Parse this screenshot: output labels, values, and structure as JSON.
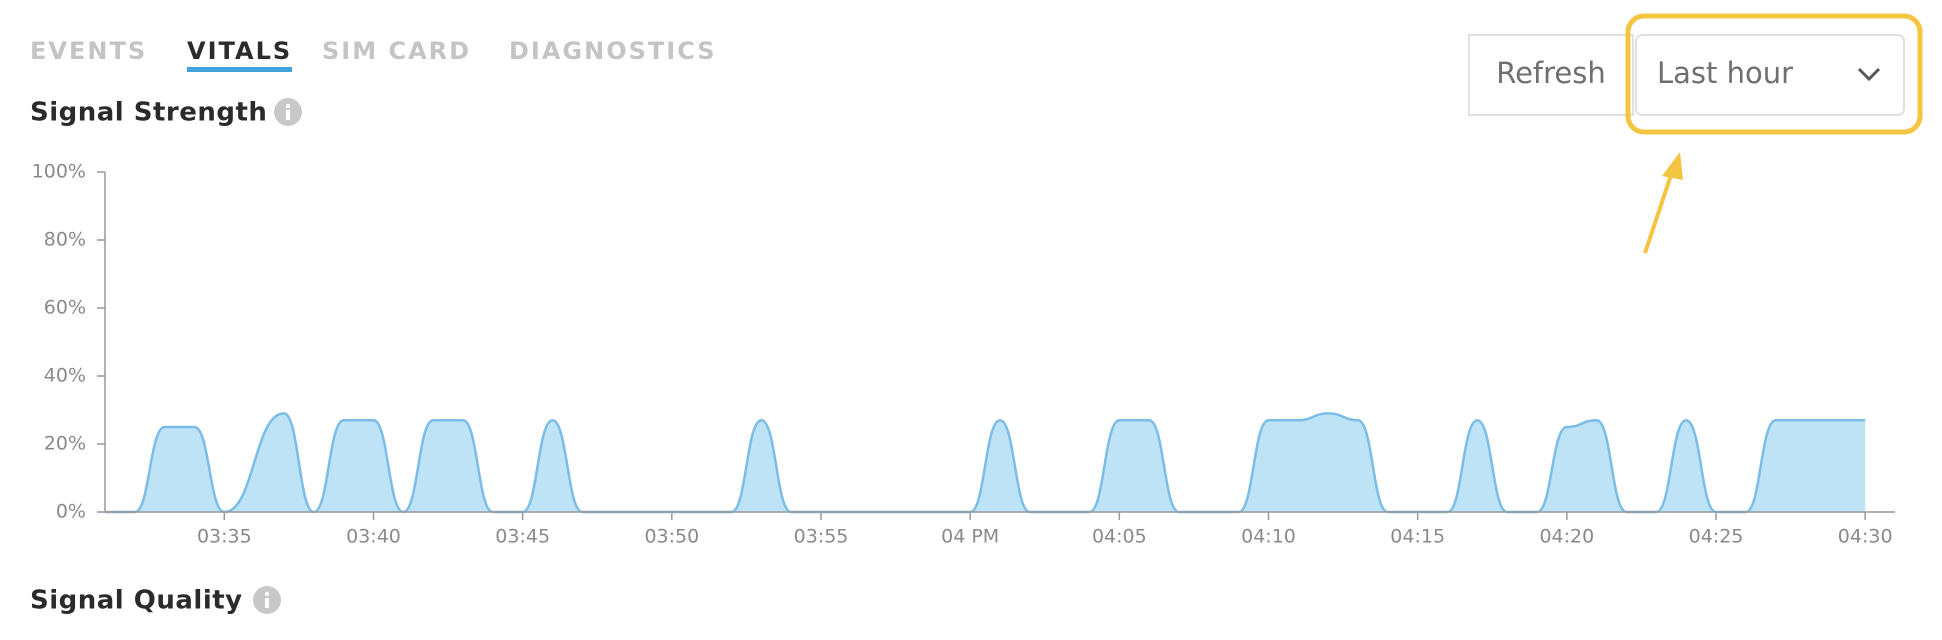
{
  "tabs": [
    "EVENTS",
    "VITALS",
    "SIM CARD",
    "DIAGNOSTICS"
  ],
  "buttons": {
    "refresh": "Refresh",
    "range": "Last hour"
  },
  "chart_data": {
    "type": "area",
    "title": "Signal Strength",
    "x": [
      "03:31",
      "03:32",
      "03:33",
      "03:34",
      "03:35",
      "03:37",
      "03:38",
      "03:39",
      "03:40",
      "03:41",
      "03:42",
      "03:43",
      "03:44",
      "03:45",
      "03:46",
      "03:47",
      "03:52",
      "03:53",
      "03:54",
      "04:00",
      "04:01",
      "04:02",
      "04:04",
      "04:05",
      "04:06",
      "04:07",
      "04:09",
      "04:10",
      "04:11",
      "04:12",
      "04:13",
      "04:14",
      "04:16",
      "04:17",
      "04:18",
      "04:19",
      "04:20",
      "04:21",
      "04:22",
      "04:23",
      "04:24",
      "04:25",
      "04:26",
      "04:27",
      "04:30"
    ],
    "values": [
      0,
      0,
      25,
      25,
      0,
      29,
      0,
      27,
      27,
      0,
      27,
      27,
      0,
      0,
      27,
      0,
      0,
      27,
      0,
      0,
      27,
      0,
      0,
      27,
      27,
      0,
      0,
      27,
      27,
      29,
      27,
      0,
      0,
      27,
      0,
      0,
      25,
      27,
      0,
      0,
      27,
      0,
      0,
      27,
      27
    ],
    "color": "#7bbde6",
    "fill": "#bee3f6",
    "xlim": [
      "03:31",
      "04:31"
    ],
    "xticks": [
      "03:35",
      "03:40",
      "03:45",
      "03:50",
      "03:55",
      {
        "value": "04:00",
        "label": "04 PM"
      },
      "04:05",
      "04:10",
      "04:15",
      "04:20",
      "04:25",
      "04:30"
    ],
    "ylim": [
      0,
      100
    ],
    "yticks": [
      {
        "value": 0,
        "label": "0%"
      },
      {
        "value": 20,
        "label": "20%"
      },
      {
        "value": 40,
        "label": "40%"
      },
      {
        "value": 60,
        "label": "60%"
      },
      {
        "value": 80,
        "label": "80%"
      },
      {
        "value": 100,
        "label": "100%"
      }
    ]
  },
  "sections": [
    "Signal Quality"
  ]
}
